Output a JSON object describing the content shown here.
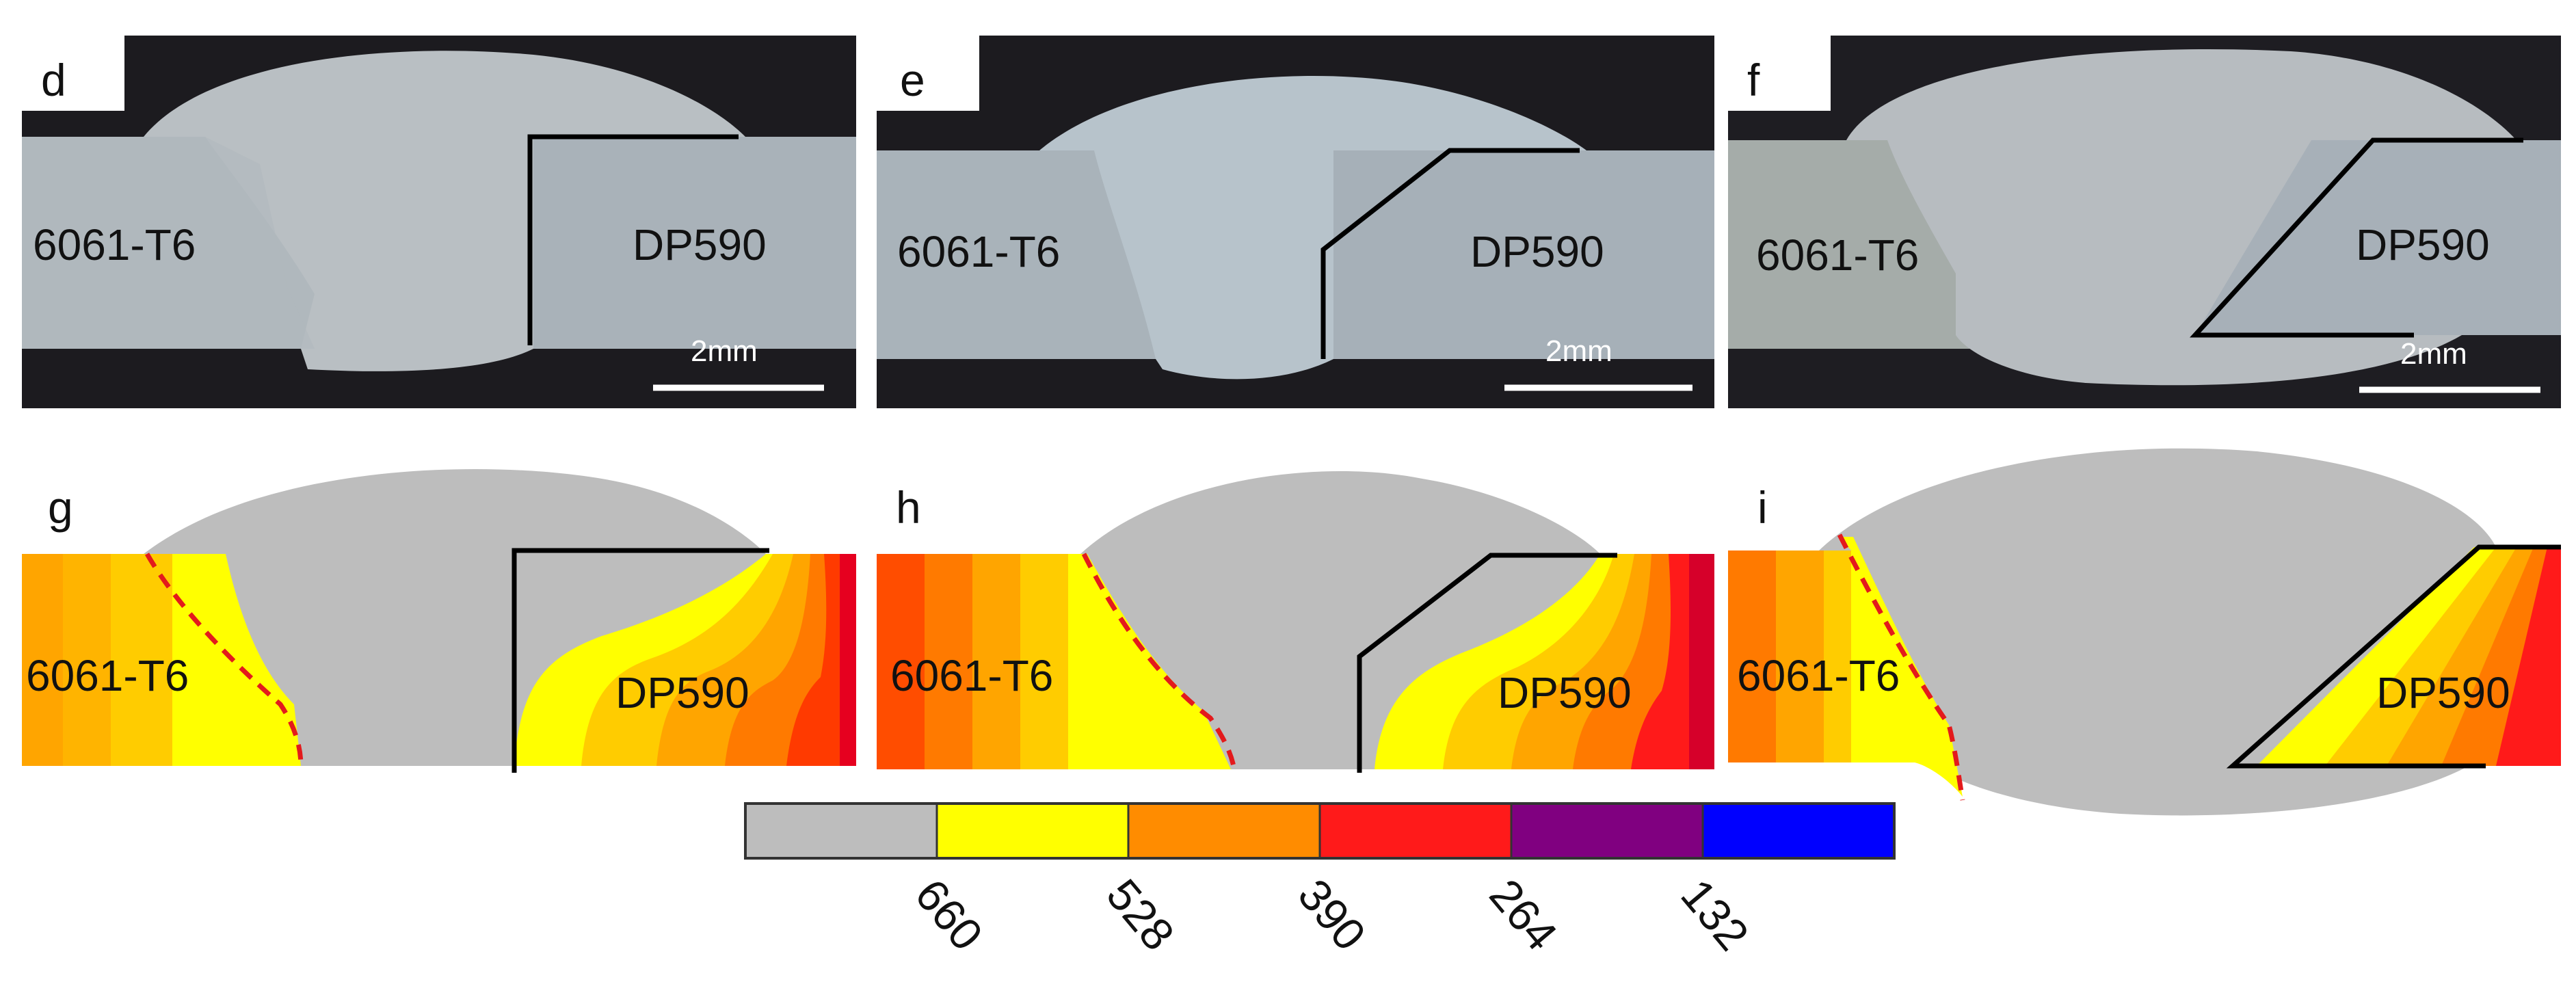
{
  "panels": [
    {
      "id": "d",
      "material_left": "6061-T6",
      "material_right": "DP590",
      "scale": "2mm"
    },
    {
      "id": "e",
      "material_left": "6061-T6",
      "material_right": "DP590",
      "scale": "2mm"
    },
    {
      "id": "f",
      "material_left": "6061-T6",
      "material_right": "DP590",
      "scale": "2mm"
    },
    {
      "id": "g",
      "material_left": "6061-T6",
      "material_right": "DP590"
    },
    {
      "id": "h",
      "material_left": "6061-T6",
      "material_right": "DP590"
    },
    {
      "id": "i",
      "material_left": "6061-T6",
      "material_right": "DP590"
    }
  ],
  "colorbar": {
    "colors": [
      "#bdbdbd",
      "#ffff00",
      "#ff8c00",
      "#ff1a1a",
      "#800080",
      "#0000ff"
    ],
    "ticks": [
      "660",
      "528",
      "390",
      "264",
      "132"
    ]
  },
  "colors": {
    "photo_bg": "#1b1b1e",
    "photo_metal": "#aab3b9",
    "photo_weld": "#b6bcc0",
    "sim_bg": "#bdbdbd",
    "interface_line": "#000000",
    "fusion_line": "#e31a1c",
    "contour_scale": [
      "#ffff00",
      "#ffcc00",
      "#ffa500",
      "#ff7a00",
      "#ff4d00",
      "#ff1a1a",
      "#e6001f"
    ]
  }
}
